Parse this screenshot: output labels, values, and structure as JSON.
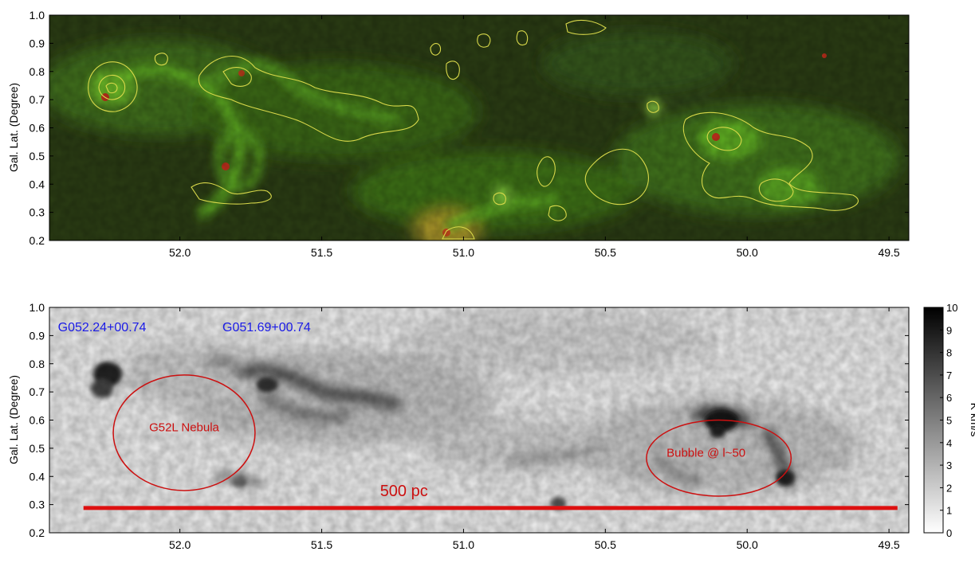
{
  "chart_data": [
    {
      "type": "heatmap",
      "panel": "top",
      "ylabel": "Gal. Lat. (Degree)",
      "xlim": [
        52.46,
        49.43
      ],
      "ylim": [
        0.2,
        1.0
      ],
      "xticks": [
        "52.0",
        "51.5",
        "51.0",
        "50.5",
        "50.0",
        "49.5"
      ],
      "xtick_values": [
        52.0,
        51.5,
        51.0,
        50.5,
        50.0,
        49.5
      ],
      "yticks": [
        "0.2",
        "0.3",
        "0.4",
        "0.5",
        "0.6",
        "0.7",
        "0.8",
        "0.9",
        "1.0"
      ],
      "ytick_values": [
        0.2,
        0.3,
        0.4,
        0.5,
        0.6,
        0.7,
        0.8,
        0.9,
        1.0
      ],
      "colors": {
        "background": "#2a3a14",
        "emission": "#4f9a1e",
        "contour": "#d8d84a",
        "hot": "#c0301c"
      }
    },
    {
      "type": "heatmap",
      "panel": "bottom",
      "ylabel": "Gal. Lat. (Degree)",
      "xlim": [
        52.46,
        49.43
      ],
      "ylim": [
        0.2,
        1.0
      ],
      "xticks": [
        "52.0",
        "51.5",
        "51.0",
        "50.5",
        "50.0",
        "49.5"
      ],
      "xtick_values": [
        52.0,
        51.5,
        51.0,
        50.5,
        50.0,
        49.5
      ],
      "yticks": [
        "0.2",
        "0.3",
        "0.4",
        "0.5",
        "0.6",
        "0.7",
        "0.8",
        "0.9",
        "1.0"
      ],
      "ytick_values": [
        0.2,
        0.3,
        0.4,
        0.5,
        0.6,
        0.7,
        0.8,
        0.9,
        1.0
      ],
      "colorbar": {
        "label": "K km/s",
        "range": [
          0,
          10
        ],
        "ticks": [
          "0",
          "1",
          "2",
          "3",
          "4",
          "5",
          "6",
          "7",
          "8",
          "9",
          "10"
        ],
        "tick_values": [
          0,
          1,
          2,
          3,
          4,
          5,
          6,
          7,
          8,
          9,
          10
        ]
      },
      "annotations": {
        "source1": "G052.24+00.74",
        "source2": "G051.69+00.74",
        "nebula": "G52L Nebula",
        "bubble": "Bubble @ l~50",
        "scale": "500 pc"
      },
      "annotation_positions": {
        "source1": {
          "l": 52.43,
          "b": 0.915
        },
        "source2": {
          "l": 51.85,
          "b": 0.915
        },
        "nebula": {
          "l": 51.985,
          "b": 0.56
        },
        "bubble": {
          "l": 50.145,
          "b": 0.47
        },
        "scale": {
          "l": 51.21,
          "b": 0.33
        }
      },
      "ellipses": [
        {
          "name": "nebula-ellipse",
          "l": 51.985,
          "b": 0.555,
          "dl": 0.25,
          "db": 0.205
        },
        {
          "name": "bubble-ellipse",
          "l": 50.1,
          "b": 0.465,
          "dl": 0.255,
          "db": 0.135
        }
      ],
      "scale_bar": {
        "l_start": 52.34,
        "l_end": 49.47,
        "b": 0.288
      },
      "colors": {
        "annotation_source": "#1a1ae6",
        "annotation_red": "#cc1010",
        "scale_bar": "#dd1010"
      }
    }
  ]
}
